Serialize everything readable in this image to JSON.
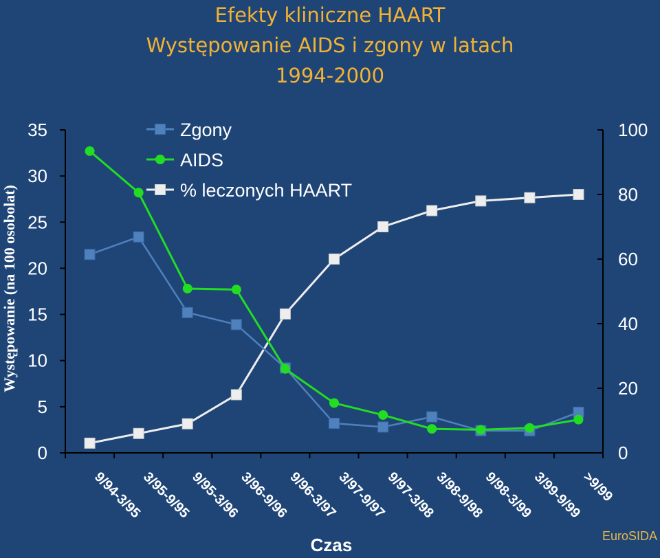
{
  "title": {
    "line1": "Efekty kliniczne HAART",
    "line2": "Występowanie AIDS i zgony w latach",
    "line3": "1994-2000"
  },
  "credit": "EuroSIDA",
  "colors": {
    "background": "#1f4577",
    "title": "#f2b233",
    "zgony": "#4f81bd",
    "aids": "#22dd22",
    "haart": "#eeeeee"
  },
  "chart_data": {
    "type": "line",
    "xlabel": "Czas",
    "ylabel": "Występowanie (na 100 osobolat)",
    "categories": [
      "9/94-3/95",
      "3/95-9/95",
      "9/95-3/96",
      "3/96-9/96",
      "9/96-3/97",
      "3/97-9/97",
      "9/97-3/98",
      "3/98-9/98",
      "9/98-3/99",
      "3/99-9/99",
      ">9/99"
    ],
    "ylim": [
      0,
      35
    ],
    "yticks": [
      0,
      5,
      10,
      15,
      20,
      25,
      30,
      35
    ],
    "y2lim": [
      0,
      100
    ],
    "y2ticks": [
      0,
      20,
      40,
      60,
      80,
      100
    ],
    "legend_position": "top-left",
    "grid": false,
    "series": [
      {
        "name": "Zgony",
        "axis": "left",
        "marker": "square",
        "values": [
          21.5,
          23.4,
          15.2,
          13.9,
          9.2,
          3.2,
          2.8,
          3.9,
          2.4,
          2.4,
          4.4
        ]
      },
      {
        "name": "AIDS",
        "axis": "left",
        "marker": "circle",
        "values": [
          32.7,
          28.2,
          17.8,
          17.7,
          9.1,
          5.4,
          4.1,
          2.6,
          2.5,
          2.7,
          3.6
        ]
      },
      {
        "name": "% leczonych HAART",
        "axis": "right",
        "marker": "square",
        "values": [
          3,
          6,
          9,
          18,
          43,
          60,
          70,
          75,
          78,
          79,
          80
        ]
      }
    ]
  }
}
